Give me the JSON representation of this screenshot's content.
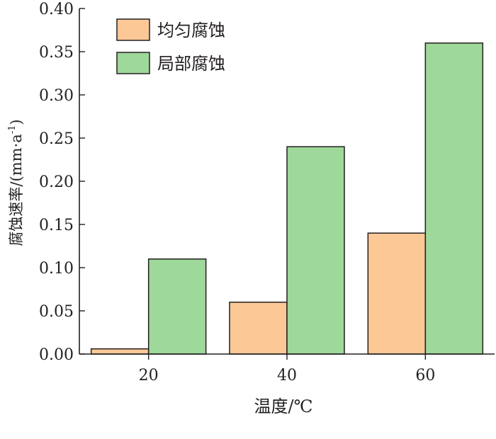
{
  "chart_data": {
    "type": "bar",
    "title": "",
    "xlabel": "温度/℃",
    "ylabel": "腐蚀速率/(mm·a",
    "ylabel_sup": "-1",
    "ylabel_tail": ")",
    "categories": [
      "20",
      "40",
      "60"
    ],
    "ylim": [
      0,
      0.4
    ],
    "yticks": [
      "0.00",
      "0.05",
      "0.10",
      "0.15",
      "0.20",
      "0.25",
      "0.30",
      "0.35",
      "0.40"
    ],
    "grid": false,
    "legend_position": "top-left",
    "series": [
      {
        "name": "均匀腐蚀",
        "values": [
          0.006,
          0.06,
          0.14
        ],
        "color": "#fcc896"
      },
      {
        "name": "局部腐蚀",
        "values": [
          0.11,
          0.24,
          0.36
        ],
        "color": "#9ed89a"
      }
    ]
  }
}
